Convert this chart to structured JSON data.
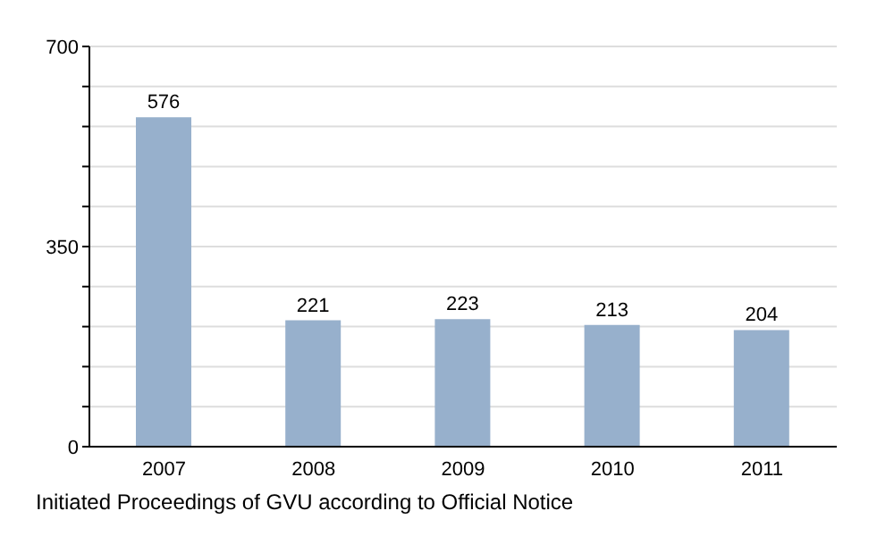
{
  "chart_data": {
    "type": "bar",
    "title": "Initiated Proceedings of GVU according to Official Notice",
    "categories": [
      "2007",
      "2008",
      "2009",
      "2010",
      "2011"
    ],
    "values": [
      576,
      221,
      223,
      213,
      204
    ],
    "color": "#97b0cc",
    "ylim": [
      0,
      700
    ],
    "yticks": [
      0,
      {
        "value": 70,
        "label": null
      },
      {
        "value": 140,
        "label": null
      },
      {
        "value": 210,
        "label": null
      },
      {
        "value": 280,
        "label": null
      },
      350,
      {
        "value": 420,
        "label": null
      },
      {
        "value": 490,
        "label": null
      },
      {
        "value": 560,
        "label": null
      },
      {
        "value": 630,
        "label": null
      },
      700
    ],
    "grid": "y",
    "data_labels": true
  }
}
